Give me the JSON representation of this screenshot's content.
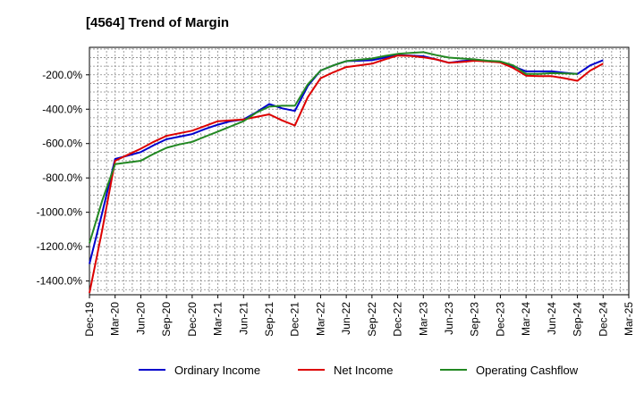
{
  "chart_data": {
    "type": "line",
    "title": "[4564]  Trend of Margin",
    "xlabel": "",
    "ylabel": "",
    "ylim": [
      -1480,
      -40
    ],
    "y_ticks": [
      -1400,
      -1200,
      -1000,
      -800,
      -600,
      -400,
      -200
    ],
    "y_tick_suffix": "%",
    "x_tick_labels": [
      "Dec-19",
      "Mar-20",
      "Jun-20",
      "Sep-20",
      "Dec-20",
      "Mar-21",
      "Jun-21",
      "Sep-21",
      "Dec-21",
      "Mar-22",
      "Jun-22",
      "Sep-22",
      "Dec-22",
      "Mar-23",
      "Jun-23",
      "Sep-23",
      "Dec-23",
      "Mar-24",
      "Jun-24",
      "Sep-24",
      "Dec-24",
      "Mar-25"
    ],
    "grid": true,
    "legend_position": "bottom",
    "series": [
      {
        "name": "Ordinary Income",
        "color": "#0000cc",
        "points": [
          [
            0,
            -1300
          ],
          [
            1,
            -1000
          ],
          [
            2,
            -690
          ],
          [
            3,
            -670
          ],
          [
            4,
            -650
          ],
          [
            5,
            -610
          ],
          [
            6,
            -575
          ],
          [
            7,
            -560
          ],
          [
            8,
            -545
          ],
          [
            9,
            -515
          ],
          [
            10,
            -490
          ],
          [
            11,
            -470
          ],
          [
            12,
            -460
          ],
          [
            13,
            -418
          ],
          [
            14,
            -370
          ],
          [
            15,
            -395
          ],
          [
            16,
            -410
          ],
          [
            17,
            -265
          ],
          [
            18,
            -175
          ],
          [
            19,
            -145
          ],
          [
            20,
            -120
          ],
          [
            21,
            -118
          ],
          [
            22,
            -115
          ],
          [
            23,
            -100
          ],
          [
            24,
            -85
          ],
          [
            25,
            -88
          ],
          [
            26,
            -92
          ],
          [
            27,
            -110
          ],
          [
            28,
            -130
          ],
          [
            29,
            -120
          ],
          [
            30,
            -115
          ],
          [
            31,
            -120
          ],
          [
            32,
            -125
          ],
          [
            33,
            -150
          ],
          [
            34,
            -180
          ],
          [
            35,
            -180
          ],
          [
            36,
            -180
          ],
          [
            37,
            -188
          ],
          [
            38,
            -195
          ],
          [
            39,
            -145
          ],
          [
            40,
            -115
          ]
        ]
      },
      {
        "name": "Net Income",
        "color": "#dd0000",
        "points": [
          [
            0,
            -1470
          ],
          [
            1,
            -1100
          ],
          [
            2,
            -700
          ],
          [
            3,
            -665
          ],
          [
            4,
            -630
          ],
          [
            5,
            -590
          ],
          [
            6,
            -555
          ],
          [
            7,
            -540
          ],
          [
            8,
            -525
          ],
          [
            9,
            -498
          ],
          [
            10,
            -470
          ],
          [
            11,
            -465
          ],
          [
            12,
            -460
          ],
          [
            13,
            -445
          ],
          [
            14,
            -430
          ],
          [
            15,
            -465
          ],
          [
            16,
            -495
          ],
          [
            17,
            -330
          ],
          [
            18,
            -220
          ],
          [
            19,
            -185
          ],
          [
            20,
            -155
          ],
          [
            21,
            -145
          ],
          [
            22,
            -135
          ],
          [
            23,
            -110
          ],
          [
            24,
            -88
          ],
          [
            25,
            -90
          ],
          [
            26,
            -98
          ],
          [
            27,
            -110
          ],
          [
            28,
            -130
          ],
          [
            29,
            -125
          ],
          [
            30,
            -118
          ],
          [
            31,
            -122
          ],
          [
            32,
            -128
          ],
          [
            33,
            -160
          ],
          [
            34,
            -205
          ],
          [
            35,
            -208
          ],
          [
            36,
            -208
          ],
          [
            37,
            -220
          ],
          [
            38,
            -235
          ],
          [
            39,
            -175
          ],
          [
            40,
            -135
          ]
        ]
      },
      {
        "name": "Operating Cashflow",
        "color": "#228822",
        "points": [
          [
            0,
            -1180
          ],
          [
            1,
            -930
          ],
          [
            2,
            -720
          ],
          [
            3,
            -710
          ],
          [
            4,
            -700
          ],
          [
            5,
            -660
          ],
          [
            6,
            -625
          ],
          [
            7,
            -605
          ],
          [
            8,
            -590
          ],
          [
            9,
            -560
          ],
          [
            10,
            -530
          ],
          [
            11,
            -500
          ],
          [
            12,
            -470
          ],
          [
            13,
            -420
          ],
          [
            14,
            -385
          ],
          [
            15,
            -380
          ],
          [
            16,
            -380
          ],
          [
            17,
            -255
          ],
          [
            18,
            -175
          ],
          [
            19,
            -145
          ],
          [
            20,
            -120
          ],
          [
            21,
            -112
          ],
          [
            22,
            -105
          ],
          [
            23,
            -90
          ],
          [
            24,
            -78
          ],
          [
            25,
            -72
          ],
          [
            26,
            -68
          ],
          [
            27,
            -85
          ],
          [
            28,
            -100
          ],
          [
            29,
            -105
          ],
          [
            30,
            -110
          ],
          [
            31,
            -118
          ],
          [
            32,
            -122
          ],
          [
            33,
            -145
          ],
          [
            34,
            -195
          ],
          [
            35,
            -195
          ],
          [
            36,
            -190
          ],
          [
            37,
            -192
          ],
          [
            38,
            -195
          ]
        ]
      }
    ]
  }
}
